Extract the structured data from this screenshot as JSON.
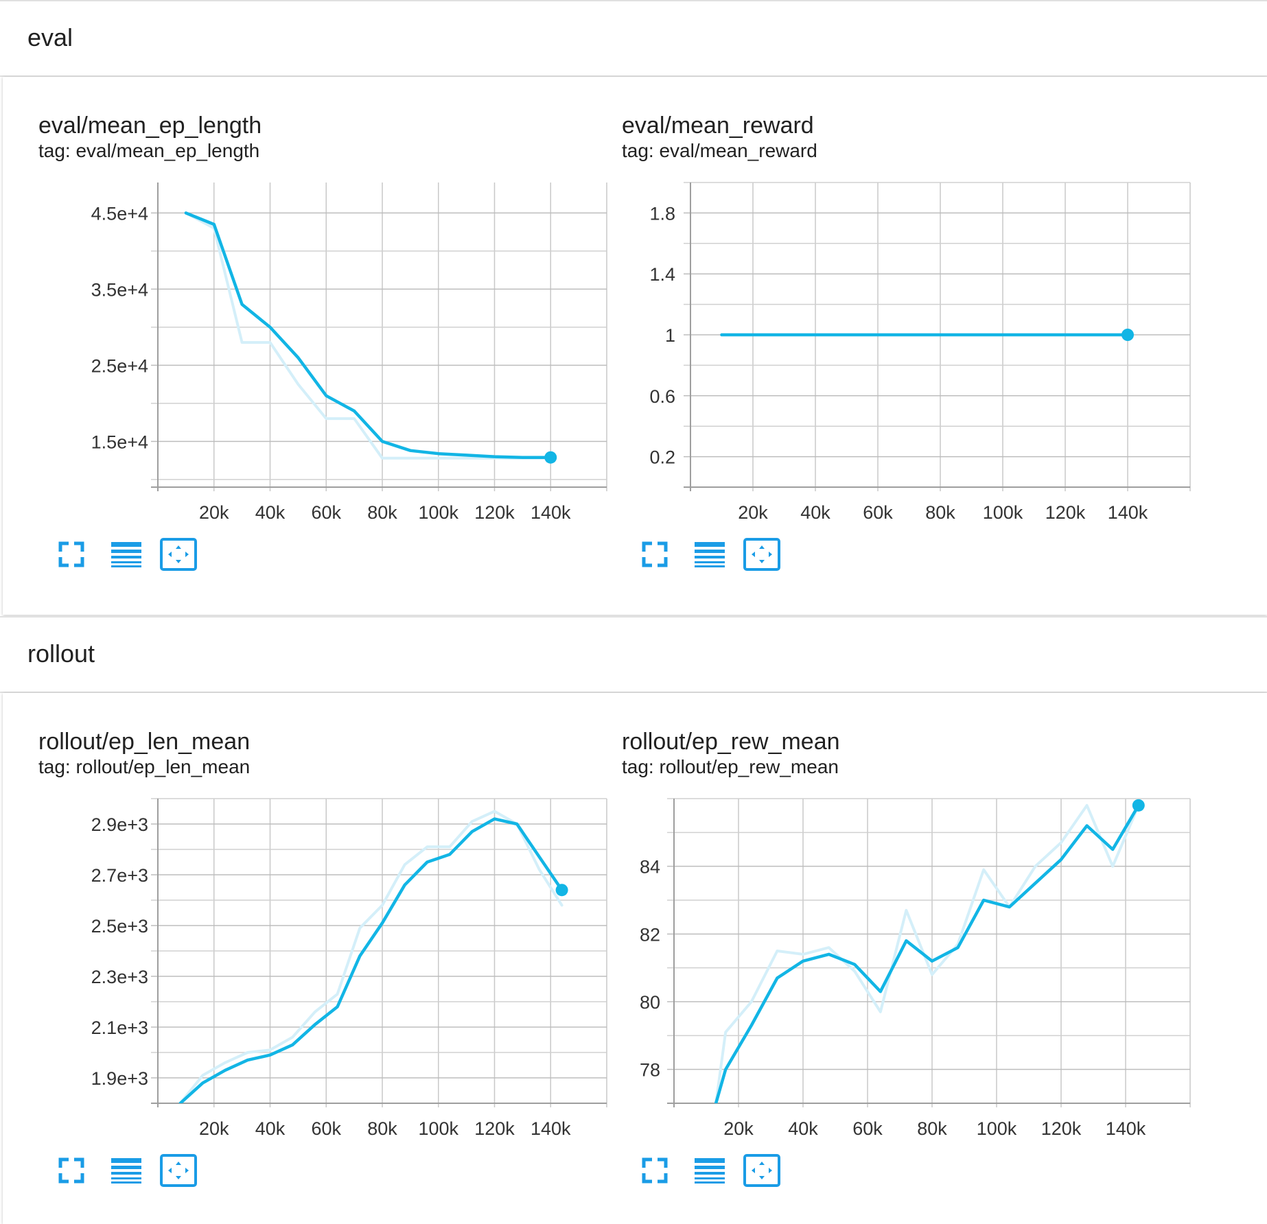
{
  "sections": [
    {
      "title": "eval",
      "cards": [
        {
          "title": "eval/mean_ep_length",
          "tag": "tag: eval/mean_ep_length"
        },
        {
          "title": "eval/mean_reward",
          "tag": "tag: eval/mean_reward"
        }
      ]
    },
    {
      "title": "rollout",
      "cards": [
        {
          "title": "rollout/ep_len_mean",
          "tag": "tag: rollout/ep_len_mean"
        },
        {
          "title": "rollout/ep_rew_mean",
          "tag": "tag: rollout/ep_rew_mean"
        }
      ]
    }
  ],
  "toolbar": {
    "icons": [
      "fullscreen-icon",
      "toggle-log-scale-icon",
      "fit-domain-icon"
    ]
  },
  "colors": {
    "smoothed": "#12b5e5",
    "raw": "#d4eff9",
    "grid": "#c8c8c8",
    "tool_icon": "#1a9ce6"
  },
  "chart_data": [
    {
      "type": "line",
      "title": "eval/mean_ep_length",
      "xlim": [
        0,
        160000
      ],
      "ylim": [
        9000,
        49000
      ],
      "x_ticks": [
        20000,
        40000,
        60000,
        80000,
        100000,
        120000,
        140000
      ],
      "x_tick_labels": [
        "20k",
        "40k",
        "60k",
        "80k",
        "100k",
        "120k",
        "140k"
      ],
      "y_ticks": [
        15000,
        25000,
        35000,
        45000
      ],
      "y_tick_labels": [
        "1.5e+4",
        "2.5e+4",
        "3.5e+4",
        "4.5e+4"
      ],
      "x": [
        10000,
        20000,
        30000,
        40000,
        50000,
        60000,
        70000,
        80000,
        90000,
        100000,
        110000,
        120000,
        130000,
        140000
      ],
      "series": [
        {
          "role": "raw",
          "values": [
            45000,
            43000,
            28000,
            28000,
            22500,
            18000,
            18000,
            12800,
            12800,
            12800,
            12800,
            12800,
            12800,
            12800
          ]
        },
        {
          "role": "smoothed",
          "values": [
            45000,
            43500,
            33000,
            30000,
            26000,
            21000,
            19000,
            15000,
            13800,
            13400,
            13200,
            13000,
            12900,
            12900
          ]
        }
      ],
      "grid": true
    },
    {
      "type": "line",
      "title": "eval/mean_reward",
      "xlim": [
        0,
        160000
      ],
      "ylim": [
        0,
        2
      ],
      "x_ticks": [
        20000,
        40000,
        60000,
        80000,
        100000,
        120000,
        140000
      ],
      "x_tick_labels": [
        "20k",
        "40k",
        "60k",
        "80k",
        "100k",
        "120k",
        "140k"
      ],
      "y_ticks": [
        0.2,
        0.6,
        1,
        1.4,
        1.8
      ],
      "y_tick_labels": [
        "0.2",
        "0.6",
        "1",
        "1.4",
        "1.8"
      ],
      "x": [
        10000,
        20000,
        30000,
        40000,
        50000,
        60000,
        70000,
        80000,
        90000,
        100000,
        110000,
        120000,
        130000,
        140000
      ],
      "series": [
        {
          "role": "raw",
          "values": [
            1,
            1,
            1,
            1,
            1,
            1,
            1,
            1,
            1,
            1,
            1,
            1,
            1,
            1
          ]
        },
        {
          "role": "smoothed",
          "values": [
            1,
            1,
            1,
            1,
            1,
            1,
            1,
            1,
            1,
            1,
            1,
            1,
            1,
            1
          ]
        }
      ],
      "grid": true
    },
    {
      "type": "line",
      "title": "rollout/ep_len_mean",
      "xlim": [
        0,
        160000
      ],
      "ylim": [
        1800,
        3000
      ],
      "x_ticks": [
        20000,
        40000,
        60000,
        80000,
        100000,
        120000,
        140000
      ],
      "x_tick_labels": [
        "20k",
        "40k",
        "60k",
        "80k",
        "100k",
        "120k",
        "140k"
      ],
      "y_ticks": [
        1900,
        2100,
        2300,
        2500,
        2700,
        2900
      ],
      "y_tick_labels": [
        "1.9e+3",
        "2.1e+3",
        "2.3e+3",
        "2.5e+3",
        "2.7e+3",
        "2.9e+3"
      ],
      "x": [
        8000,
        16000,
        24000,
        32000,
        40000,
        48000,
        56000,
        64000,
        72000,
        80000,
        88000,
        96000,
        104000,
        112000,
        120000,
        128000,
        136000,
        144000
      ],
      "series": [
        {
          "role": "raw",
          "values": [
            1800,
            1910,
            1960,
            2000,
            2010,
            2060,
            2160,
            2230,
            2490,
            2580,
            2740,
            2810,
            2810,
            2910,
            2950,
            2900,
            2720,
            2580
          ]
        },
        {
          "role": "smoothed",
          "values": [
            1800,
            1880,
            1930,
            1970,
            1990,
            2030,
            2110,
            2180,
            2380,
            2510,
            2660,
            2750,
            2780,
            2870,
            2920,
            2900,
            2770,
            2640
          ]
        }
      ],
      "grid": true
    },
    {
      "type": "line",
      "title": "rollout/ep_rew_mean",
      "xlim": [
        0,
        160000
      ],
      "ylim": [
        77,
        86
      ],
      "x_ticks": [
        20000,
        40000,
        60000,
        80000,
        100000,
        120000,
        140000
      ],
      "x_tick_labels": [
        "20k",
        "40k",
        "60k",
        "80k",
        "100k",
        "120k",
        "140k"
      ],
      "y_ticks": [
        78,
        80,
        82,
        84
      ],
      "y_tick_labels": [
        "78",
        "80",
        "82",
        "84"
      ],
      "x": [
        13000,
        16000,
        24000,
        32000,
        40000,
        48000,
        56000,
        64000,
        72000,
        80000,
        88000,
        96000,
        104000,
        112000,
        120000,
        128000,
        136000,
        144000
      ],
      "series": [
        {
          "role": "raw",
          "values": [
            77,
            79.1,
            80,
            81.5,
            81.4,
            81.6,
            80.9,
            79.7,
            82.7,
            80.8,
            81.7,
            83.9,
            82.8,
            84.0,
            84.7,
            85.8,
            84.0,
            85.8
          ]
        },
        {
          "role": "smoothed",
          "values": [
            77,
            78,
            79.3,
            80.7,
            81.2,
            81.4,
            81.1,
            80.3,
            81.8,
            81.2,
            81.6,
            83.0,
            82.8,
            83.5,
            84.2,
            85.2,
            84.5,
            85.8
          ]
        }
      ],
      "grid": true
    }
  ]
}
